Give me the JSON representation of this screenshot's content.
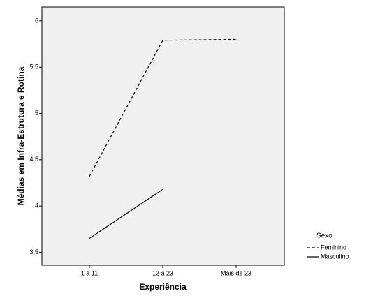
{
  "chart_data": {
    "type": "line",
    "x_label": "Experiência",
    "y_label": "Médias em Infra-Estrutura e Rotina",
    "categories": [
      "1 a 11",
      "12 a 23",
      "Mais de 23"
    ],
    "series": [
      {
        "name": "Feminino",
        "color": "#000000",
        "line_style": "dashed",
        "values": [
          4.32,
          5.79,
          5.8
        ]
      },
      {
        "name": "Masculino",
        "color": "#000000",
        "line_style": "solid",
        "values": [
          3.65,
          4.18,
          null
        ]
      }
    ],
    "ylim": [
      3.36,
      6.15
    ],
    "yticks": [
      {
        "value": 3.5,
        "label": "3,5"
      },
      4,
      {
        "value": 4.5,
        "label": "4,5"
      },
      5,
      {
        "value": 5.5,
        "label": "5,5"
      },
      6
    ],
    "legend_title": "Sexo",
    "legend_position": "right"
  }
}
